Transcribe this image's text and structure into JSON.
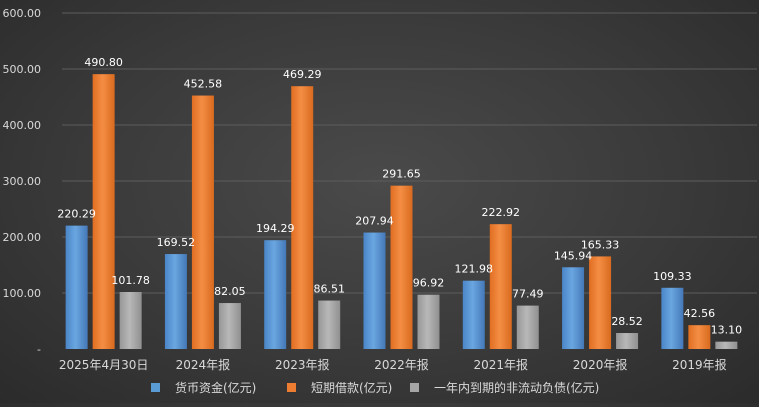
{
  "chart_data": {
    "type": "bar",
    "categories": [
      "2025年4月30日",
      "2024年报",
      "2023年报",
      "2022年报",
      "2021年报",
      "2020年报",
      "2019年报"
    ],
    "series": [
      {
        "name": "货币资金(亿元)",
        "color": "#5b9bd5",
        "values": [
          220.29,
          169.52,
          194.29,
          207.94,
          121.98,
          145.94,
          109.33
        ],
        "labels": [
          "220.29",
          "169.52",
          "194.29",
          "207.94",
          "121.98",
          "145.94",
          "109.33"
        ]
      },
      {
        "name": "短期借款(亿元)",
        "color": "#ed7d31",
        "values": [
          490.8,
          452.58,
          469.29,
          291.65,
          222.92,
          165.33,
          42.56
        ],
        "labels": [
          "490.80",
          "452.58",
          "469.29",
          "291.65",
          "222.92",
          "165.33",
          "42.56"
        ]
      },
      {
        "name": "一年内到期的非流动负债(亿元)",
        "color": "#a5a5a5",
        "values": [
          101.78,
          82.05,
          86.51,
          96.92,
          77.49,
          28.52,
          13.1
        ],
        "labels": [
          "101.78",
          "82.05",
          "86.51",
          "96.92",
          "77.49",
          "28.52",
          "13.10"
        ]
      }
    ],
    "yticks": [
      "-",
      "100.00",
      "200.00",
      "300.00",
      "400.00",
      "500.00",
      "600.00"
    ],
    "ylim": [
      0,
      600
    ],
    "grid": true,
    "legend": "bottom",
    "title": "",
    "xlabel": "",
    "ylabel": ""
  }
}
